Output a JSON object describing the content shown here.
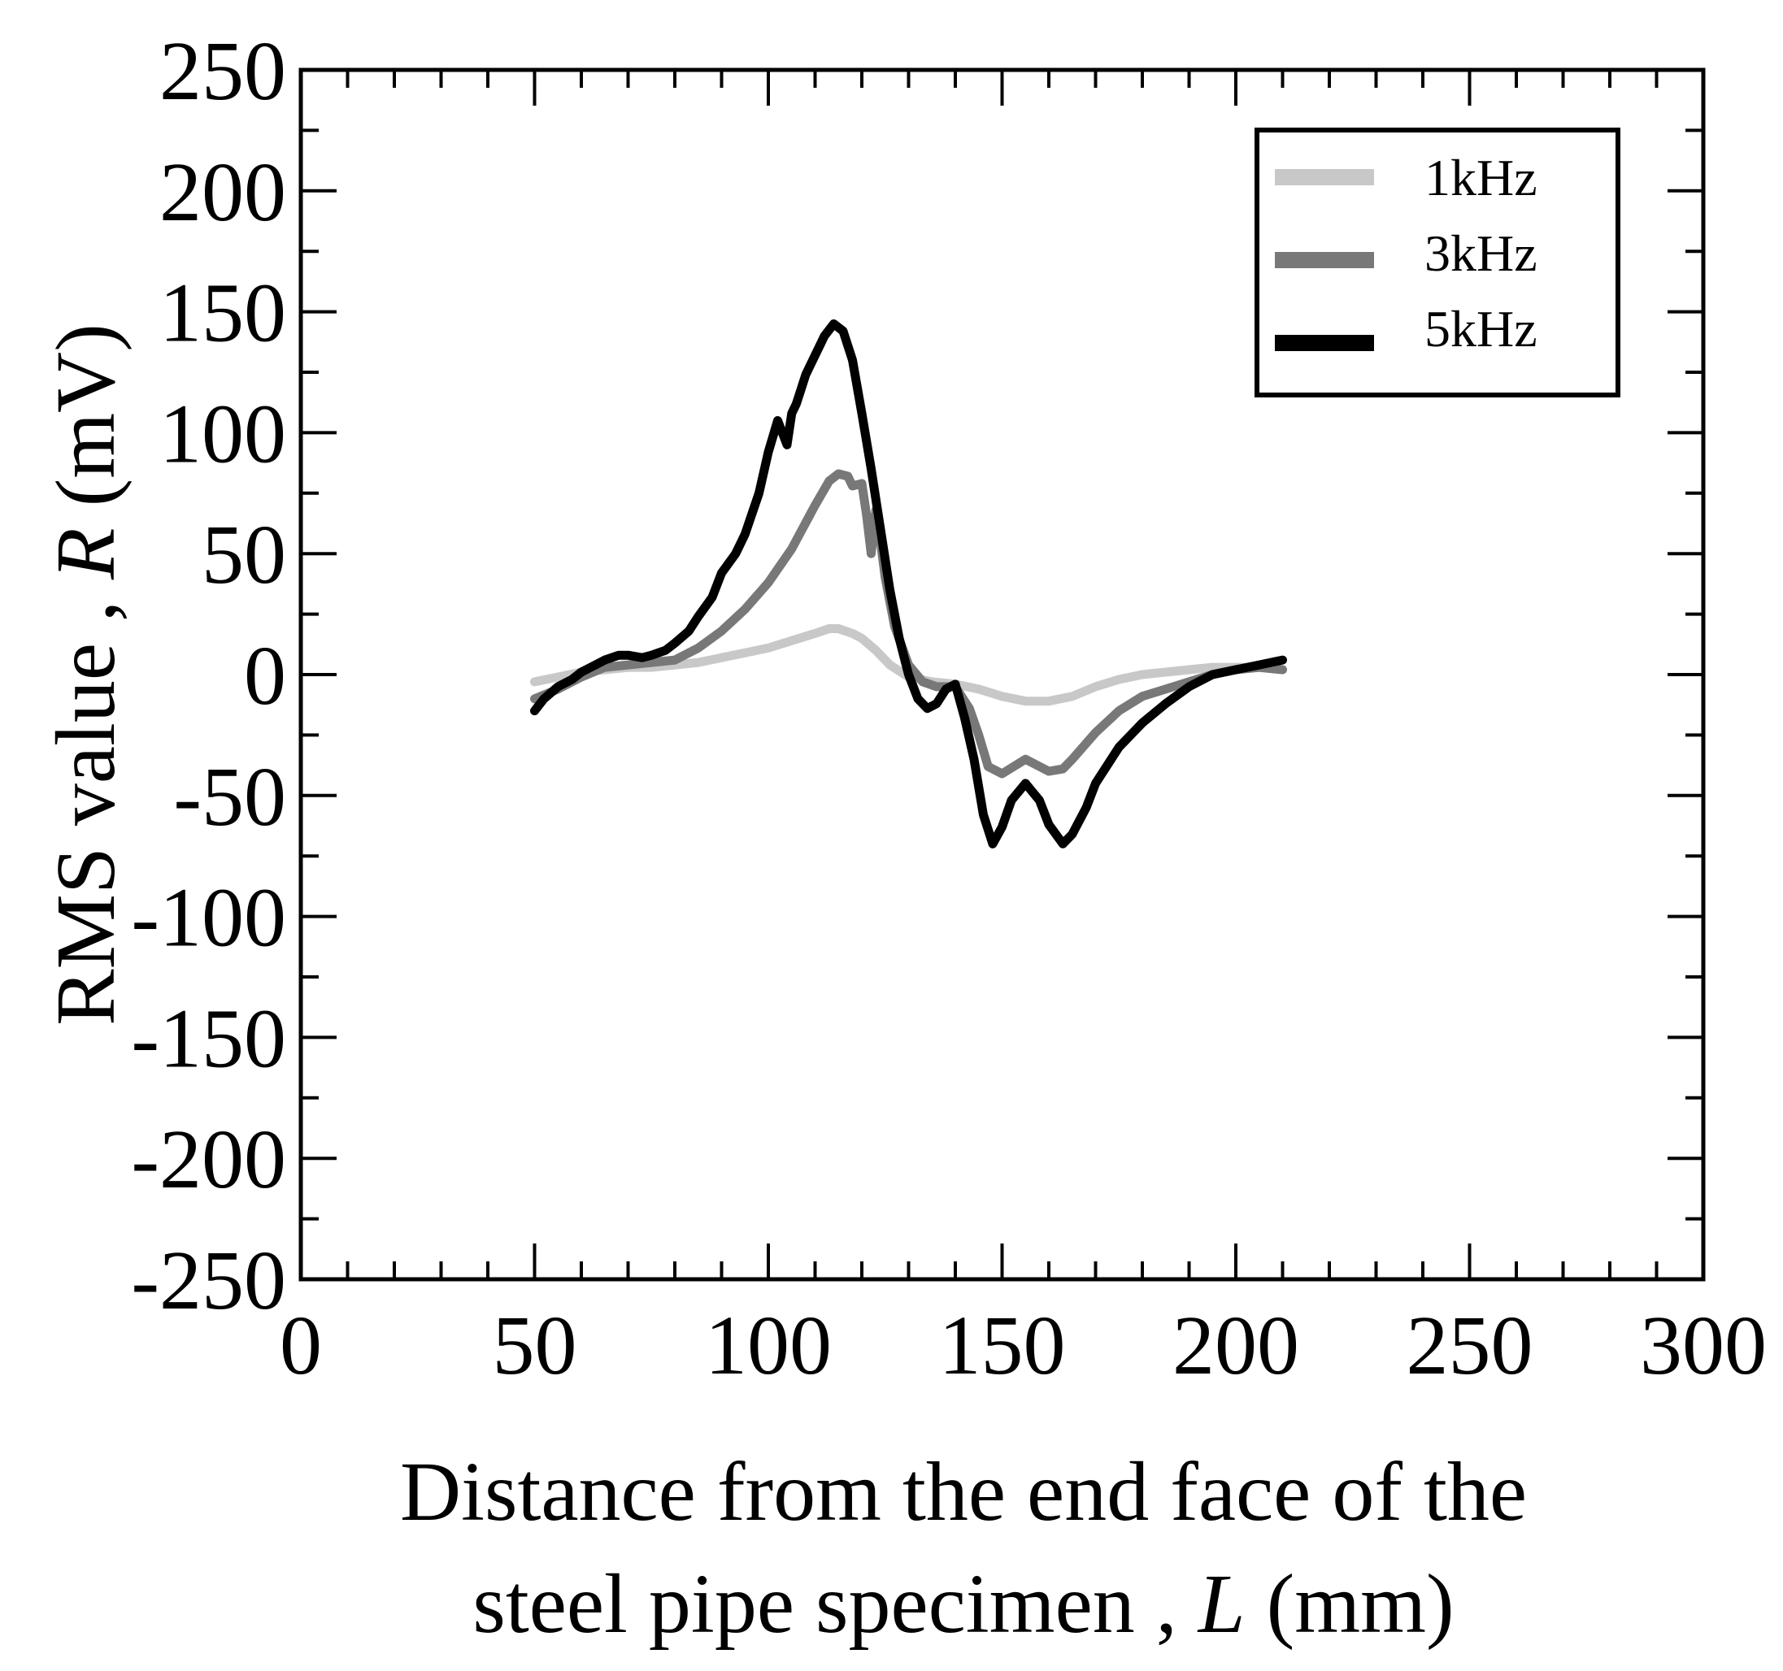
{
  "chart_data": {
    "type": "line",
    "xlabel_line1": "Distance from the end face of the",
    "xlabel_line2_prefix": "steel pipe specimen , ",
    "xlabel_var": "L",
    "xlabel_unit": " (mm)",
    "ylabel_prefix": "RMS value , ",
    "ylabel_var": "R",
    "ylabel_unit": " (mV)",
    "xlim": [
      0,
      300
    ],
    "ylim": [
      -250,
      250
    ],
    "x_ticks": [
      0,
      50,
      100,
      150,
      200,
      250,
      300
    ],
    "y_ticks": [
      250,
      200,
      150,
      100,
      50,
      0,
      -50,
      -100,
      -150,
      -200,
      -250
    ],
    "x_tick_labels": [
      "0",
      "50",
      "100",
      "150",
      "200",
      "250",
      "300"
    ],
    "y_tick_labels": [
      "250",
      "200",
      "150",
      "100",
      "50",
      "0",
      "-50",
      "-100",
      "-150",
      "-200",
      "-250"
    ],
    "x_minor_step": 10,
    "y_minor_step": 25,
    "grid": false,
    "legend_position": "top-right",
    "series": [
      {
        "name": "1kHz",
        "color": "#c8c8c8",
        "x": [
          50,
          55,
          60,
          65,
          70,
          75,
          80,
          85,
          90,
          95,
          100,
          105,
          110,
          113,
          115,
          118,
          120,
          123,
          126,
          130,
          135,
          140,
          145,
          150,
          155,
          160,
          165,
          170,
          175,
          180,
          185,
          190,
          195,
          200,
          205,
          210
        ],
        "y": [
          -3,
          -1,
          1,
          2,
          3,
          3,
          4,
          5,
          7,
          9,
          11,
          14,
          17,
          19,
          19,
          17,
          15,
          10,
          4,
          -1,
          -3,
          -4,
          -6,
          -9,
          -11,
          -11,
          -9,
          -5,
          -2,
          0,
          1,
          2,
          3,
          3,
          3,
          2
        ]
      },
      {
        "name": "3kHz",
        "color": "#787878",
        "x": [
          50,
          55,
          60,
          65,
          70,
          75,
          80,
          85,
          90,
          95,
          100,
          105,
          110,
          113,
          115,
          117,
          118,
          120,
          121,
          122,
          123,
          124,
          125,
          127,
          130,
          133,
          136,
          140,
          143,
          145,
          147,
          150,
          155,
          160,
          163,
          165,
          170,
          175,
          180,
          185,
          190,
          195,
          200,
          205,
          210
        ],
        "y": [
          -10,
          -6,
          -1,
          3,
          4,
          5,
          6,
          11,
          18,
          27,
          38,
          52,
          70,
          80,
          83,
          82,
          78,
          79,
          66,
          50,
          68,
          55,
          40,
          20,
          4,
          -3,
          -5,
          -5,
          -14,
          -25,
          -38,
          -41,
          -35,
          -40,
          -39,
          -35,
          -24,
          -15,
          -9,
          -6,
          -3,
          0,
          2,
          3,
          2
        ]
      },
      {
        "name": "5kHz",
        "color": "#000000",
        "x": [
          50,
          52,
          55,
          58,
          60,
          63,
          65,
          68,
          70,
          73,
          75,
          78,
          80,
          83,
          85,
          88,
          90,
          93,
          95,
          98,
          100,
          102,
          104,
          105,
          106,
          107,
          108,
          110,
          112,
          114,
          116,
          118,
          120,
          122,
          124,
          126,
          128,
          130,
          132,
          134,
          136,
          138,
          140,
          142,
          144,
          146,
          148,
          150,
          152,
          155,
          158,
          160,
          163,
          165,
          168,
          170,
          175,
          180,
          185,
          190,
          195,
          200,
          205,
          210
        ],
        "y": [
          -15,
          -10,
          -5,
          -2,
          1,
          4,
          6,
          8,
          8,
          7,
          8,
          10,
          13,
          18,
          24,
          32,
          42,
          50,
          58,
          75,
          92,
          105,
          95,
          108,
          112,
          118,
          124,
          132,
          140,
          145,
          142,
          130,
          108,
          85,
          60,
          35,
          15,
          0,
          -10,
          -14,
          -12,
          -6,
          -4,
          -18,
          -35,
          -58,
          -70,
          -63,
          -52,
          -45,
          -52,
          -62,
          -70,
          -66,
          -55,
          -45,
          -30,
          -20,
          -12,
          -5,
          0,
          2,
          4,
          6
        ]
      }
    ]
  }
}
